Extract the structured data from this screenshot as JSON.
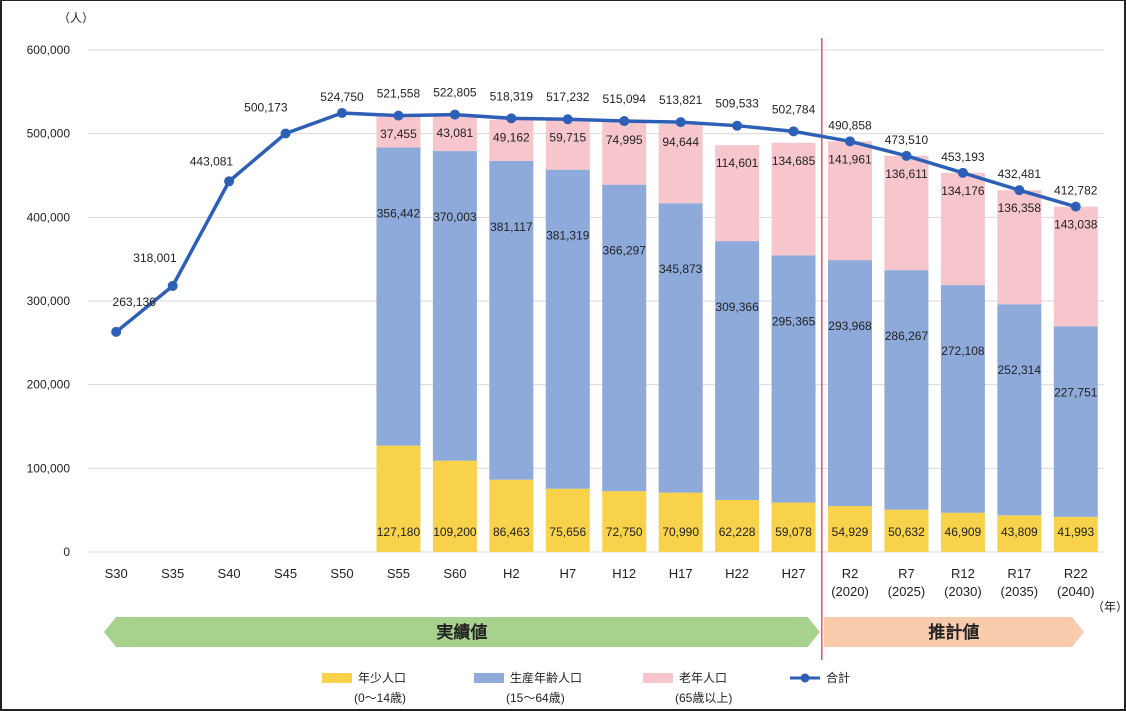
{
  "chart_data": {
    "type": "bar",
    "y_unit": "（人）",
    "x_unit": "（年）",
    "ylim": [
      0,
      600000
    ],
    "yticks": [
      0,
      100000,
      200000,
      300000,
      400000,
      500000,
      600000
    ],
    "ytick_labels": [
      "0",
      "100,000",
      "200,000",
      "300,000",
      "400,000",
      "500,000",
      "600,000"
    ],
    "grid": true,
    "categories": [
      [
        "S30"
      ],
      [
        "S35"
      ],
      [
        "S40"
      ],
      [
        "S45"
      ],
      [
        "S50"
      ],
      [
        "S55"
      ],
      [
        "S60"
      ],
      [
        "H2"
      ],
      [
        "H7"
      ],
      [
        "H12"
      ],
      [
        "H17"
      ],
      [
        "H22"
      ],
      [
        "H27"
      ],
      [
        "R2",
        "(2020)"
      ],
      [
        "R7",
        "(2025)"
      ],
      [
        "R12",
        "(2030)"
      ],
      [
        "R17",
        "(2035)"
      ],
      [
        "R22",
        "(2040)"
      ]
    ],
    "series": [
      {
        "name": "年少人口",
        "name_sub": "(0～14歳)",
        "color": "#f8d24a",
        "values": [
          null,
          null,
          null,
          null,
          null,
          127180,
          109200,
          86463,
          75656,
          72750,
          70990,
          62228,
          59078,
          54929,
          50632,
          46909,
          43809,
          41993
        ],
        "labels": [
          "",
          "",
          "",
          "",
          "",
          "127,180",
          "109,200",
          "86,463",
          "75,656",
          "72,750",
          "70,990",
          "62,228",
          "59,078",
          "54,929",
          "50,632",
          "46,909",
          "43,809",
          "41,993"
        ]
      },
      {
        "name": "生産年齢人口",
        "name_sub": "(15～64歳)",
        "color": "#8eaadb",
        "values": [
          null,
          null,
          null,
          null,
          null,
          356442,
          370003,
          381117,
          381319,
          366297,
          345873,
          309366,
          295365,
          293968,
          286267,
          272108,
          252314,
          227751
        ],
        "labels": [
          "",
          "",
          "",
          "",
          "",
          "356,442",
          "370,003",
          "381,117",
          "381,319",
          "366,297",
          "345,873",
          "309,366",
          "295,365",
          "293,968",
          "286,267",
          "272,108",
          "252,314",
          "227,751"
        ]
      },
      {
        "name": "老年人口",
        "name_sub": "(65歳以上)",
        "color": "#f7c6cc",
        "values": [
          null,
          null,
          null,
          null,
          null,
          37455,
          43081,
          49162,
          59715,
          74995,
          94644,
          114601,
          134685,
          141961,
          136611,
          134176,
          136358,
          143038
        ],
        "labels": [
          "",
          "",
          "",
          "",
          "",
          "37,455",
          "43,081",
          "49,162",
          "59,715",
          "74,995",
          "94,644",
          "114,601",
          "134,685",
          "141,961",
          "136,611",
          "134,176",
          "136,358",
          "143,038"
        ]
      },
      {
        "name": "合計",
        "type": "line",
        "color": "#2e5fb7",
        "values": [
          263136,
          318001,
          443081,
          500173,
          524750,
          521558,
          522805,
          518319,
          517232,
          515094,
          513821,
          509533,
          502784,
          490858,
          473510,
          453193,
          432481,
          412782
        ],
        "labels": [
          "263,136",
          "318,001",
          "443,081",
          "500,173",
          "524,750",
          "521,558",
          "522,805",
          "518,319",
          "517,232",
          "515,094",
          "513,821",
          "509,533",
          "502,784",
          "490,858",
          "473,510",
          "453,193",
          "432,481",
          "412,782"
        ]
      }
    ],
    "periods": [
      {
        "label": "実績値",
        "from": 0,
        "to": 12,
        "color": "#a9d18e"
      },
      {
        "label": "推計値",
        "from": 13,
        "to": 17,
        "color": "#f8cbad"
      }
    ],
    "divider_after_index": 12,
    "divider_color": "#e8545a",
    "legend_position": "bottom"
  }
}
